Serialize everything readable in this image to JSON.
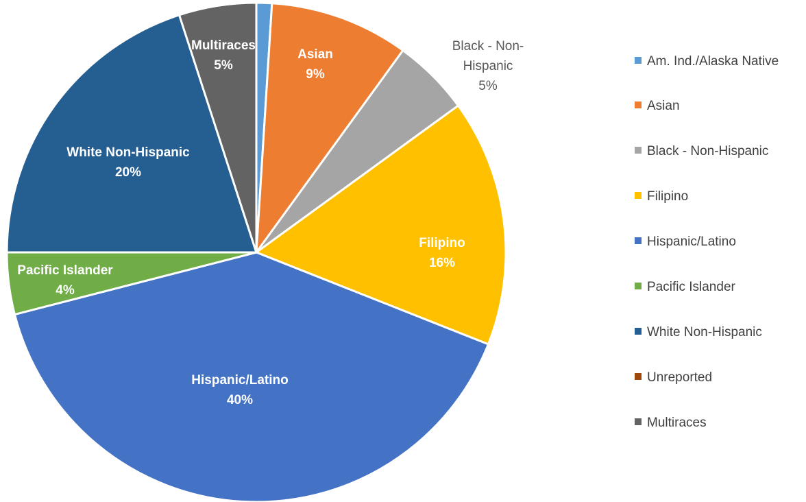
{
  "chart_data": {
    "type": "pie",
    "title": "",
    "slices": [
      {
        "label": "Am. Ind./Alaska Native",
        "value": 1,
        "color": "#5B9BD5",
        "data_label": "",
        "label_pct": ""
      },
      {
        "label": "Asian",
        "value": 9,
        "color": "#ED7D31",
        "data_label": "Asian",
        "label_pct": "9%"
      },
      {
        "label": "Black - Non-Hispanic",
        "value": 5,
        "color": "#A5A5A5",
        "data_label": "Black - Non-Hispanic",
        "label_pct": "5%"
      },
      {
        "label": "Filipino",
        "value": 16,
        "color": "#FFC000",
        "data_label": "Filipino",
        "label_pct": "16%"
      },
      {
        "label": "Hispanic/Latino",
        "value": 40,
        "color": "#4472C4",
        "data_label": "Hispanic/Latino",
        "label_pct": "40%"
      },
      {
        "label": "Pacific Islander",
        "value": 4,
        "color": "#70AD47",
        "data_label": "Pacific Islander",
        "label_pct": "4%"
      },
      {
        "label": "White Non-Hispanic",
        "value": 20,
        "color": "#255E91",
        "data_label": "White Non-Hispanic",
        "label_pct": "20%"
      },
      {
        "label": "Unreported",
        "value": 0,
        "color": "#9E480E",
        "data_label": "",
        "label_pct": ""
      },
      {
        "label": "Multiraces",
        "value": 5,
        "color": "#636363",
        "data_label": "Multiraces",
        "label_pct": "5%"
      }
    ],
    "legend_position": "right",
    "label_colors": {
      "inside": "#ffffff",
      "outside": "#595959"
    }
  }
}
